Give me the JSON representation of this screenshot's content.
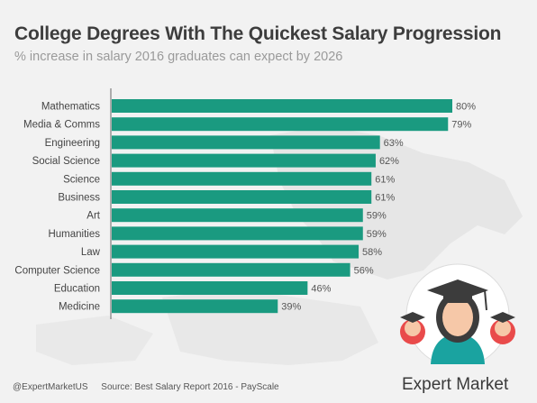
{
  "header": {
    "title": "College Degrees With The Quickest Salary Progression",
    "subtitle": "% increase in salary 2016 graduates can expect by 2026"
  },
  "footer": {
    "handle": "@ExpertMarketUS",
    "source": "Source: Best Salary Report 2016 - PayScale",
    "brand": "Expert Market"
  },
  "colors": {
    "bar": "#1a9a80",
    "background": "#f2f2f2",
    "axis": "#666666",
    "badge_circle": "#ffffff",
    "badge_ring": "#e94b4b"
  },
  "icons": [
    "world-map-background-icon",
    "graduates-badge-icon"
  ],
  "chart_data": {
    "type": "bar",
    "orientation": "horizontal",
    "title": "College Degrees With The Quickest Salary Progression",
    "subtitle": "% increase in salary 2016 graduates can expect by 2026",
    "categories": [
      "Mathematics",
      "Media & Comms",
      "Engineering",
      "Social Science",
      "Science",
      "Business",
      "Art",
      "Humanities",
      "Law",
      "Computer Science",
      "Education",
      "Medicine"
    ],
    "values": [
      80,
      79,
      63,
      62,
      61,
      61,
      59,
      59,
      58,
      56,
      46,
      39
    ],
    "value_labels": [
      "80%",
      "79%",
      "63%",
      "62%",
      "61%",
      "61%",
      "59%",
      "59%",
      "58%",
      "56%",
      "46%",
      "39%"
    ],
    "xlim": [
      0,
      80
    ],
    "grid": false,
    "legend": "none"
  }
}
